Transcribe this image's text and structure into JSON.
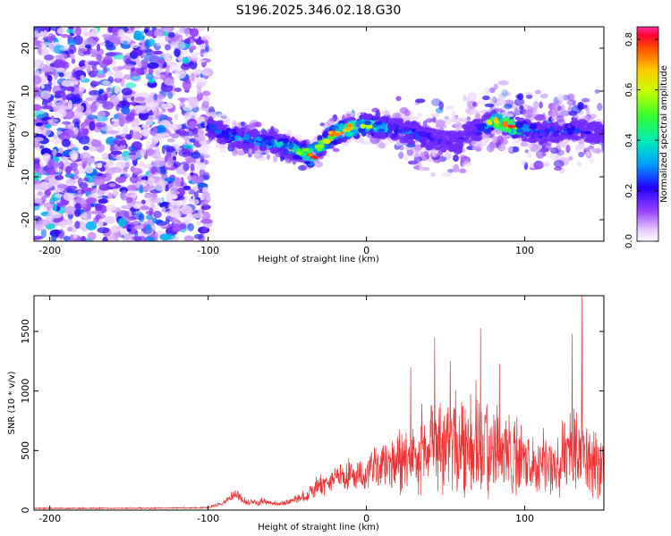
{
  "title": "S196.2025.346.02.18.G30",
  "chart_data": [
    {
      "type": "heatmap",
      "xlabel": "Height of straight line (km)",
      "ylabel": "Frequency (Hz)",
      "xlim": [
        -210,
        150
      ],
      "ylim": [
        -25,
        25
      ],
      "xticks": [
        -200,
        -100,
        0,
        100
      ],
      "yticks": [
        -20,
        -10,
        0,
        10,
        20
      ],
      "colorbar": {
        "label": "Normalized spectral amplitude",
        "range": [
          0.0,
          0.85
        ],
        "ticks": [
          0.0,
          0.2,
          0.4,
          0.6,
          0.8
        ],
        "tick_labels": [
          "0.0",
          "0.2",
          "0.4",
          "0.6",
          "0.8"
        ]
      },
      "ridge": {
        "description": "Doppler signal track",
        "x": [
          -100,
          -90,
          -80,
          -70,
          -60,
          -50,
          -40,
          -35,
          -30,
          -25,
          -20,
          -10,
          0,
          10,
          20,
          30,
          40,
          50,
          60,
          70,
          80,
          90,
          100,
          110,
          120,
          130,
          140,
          150
        ],
        "y": [
          2,
          0,
          -1,
          -1.5,
          -2,
          -3,
          -4,
          -5,
          -3,
          -1.5,
          0,
          1.5,
          2,
          1.5,
          1,
          0,
          -1,
          -2,
          -1,
          1,
          3,
          2,
          1,
          0,
          0.5,
          1,
          0.5,
          0
        ],
        "peak_amplitude": [
          0.3,
          0.35,
          0.35,
          0.4,
          0.4,
          0.45,
          0.55,
          0.85,
          0.6,
          0.7,
          0.8,
          0.75,
          0.6,
          0.5,
          0.3,
          0.3,
          0.25,
          0.2,
          0.2,
          0.25,
          0.7,
          0.85,
          0.4,
          0.3,
          0.3,
          0.3,
          0.25,
          0.2
        ]
      },
      "noise_region": {
        "x_range": [
          -210,
          -100
        ],
        "amplitude": 0.25
      }
    },
    {
      "type": "line",
      "xlabel": "Height of straight line (km)",
      "ylabel": "SNR (10 * v/v)",
      "xlim": [
        -210,
        150
      ],
      "ylim": [
        0,
        1800
      ],
      "xticks": [
        -200,
        -100,
        0,
        100
      ],
      "yticks": [
        0,
        500,
        1000,
        1500
      ],
      "color": "#ee3333",
      "envelope": {
        "x": [
          -210,
          -150,
          -100,
          -90,
          -85,
          -82,
          -75,
          -65,
          -55,
          -45,
          -40,
          -35,
          -25,
          -20,
          -10,
          0,
          5,
          10,
          20,
          30,
          40,
          50,
          60,
          70,
          80,
          90,
          100,
          110,
          120,
          130,
          140,
          150
        ],
        "mean": [
          15,
          15,
          20,
          60,
          120,
          130,
          60,
          70,
          50,
          80,
          110,
          150,
          220,
          260,
          280,
          300,
          320,
          350,
          380,
          420,
          500,
          480,
          520,
          560,
          480,
          420,
          400,
          380,
          350,
          420,
          380,
          380
        ],
        "spread": [
          10,
          10,
          10,
          40,
          80,
          90,
          40,
          50,
          30,
          60,
          80,
          120,
          180,
          200,
          220,
          250,
          330,
          360,
          450,
          500,
          650,
          700,
          750,
          800,
          700,
          600,
          550,
          500,
          450,
          650,
          550,
          500
        ]
      },
      "peaks": [
        {
          "x": 28,
          "y": 1200
        },
        {
          "x": 43,
          "y": 1450
        },
        {
          "x": 53,
          "y": 1250
        },
        {
          "x": 72,
          "y": 1530
        },
        {
          "x": 84,
          "y": 1230
        },
        {
          "x": 130,
          "y": 1480
        },
        {
          "x": 136,
          "y": 1800
        }
      ]
    }
  ]
}
